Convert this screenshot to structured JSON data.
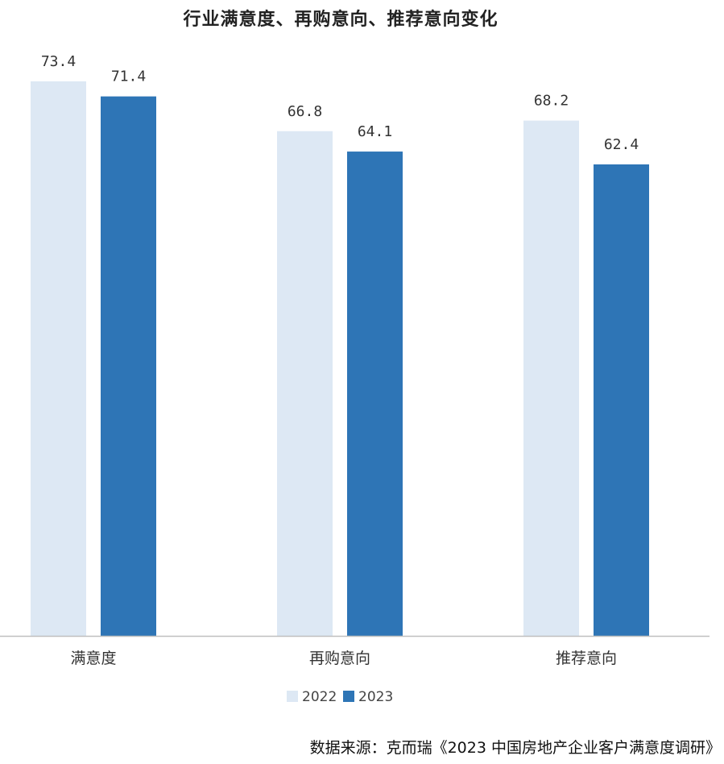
{
  "chart_data": {
    "type": "bar",
    "title": "行业满意度、再购意向、推荐意向变化",
    "categories": [
      "满意度",
      "再购意向",
      "推荐意向"
    ],
    "series": [
      {
        "name": "2022",
        "values": [
          73.4,
          66.8,
          68.2
        ],
        "color": "#DDE8F4"
      },
      {
        "name": "2023",
        "values": [
          71.4,
          64.1,
          62.4
        ],
        "color": "#2E75B6"
      }
    ],
    "value_labels": [
      [
        "73.4",
        "66.8",
        "68.2"
      ],
      [
        "71.4",
        "64.1",
        "62.4"
      ]
    ],
    "grid": false,
    "legend_position": "bottom-center",
    "axis_color": "#BFBFBF"
  },
  "source": "数据来源：克而瑞《2023 中国房地产企业客户满意度调研》"
}
